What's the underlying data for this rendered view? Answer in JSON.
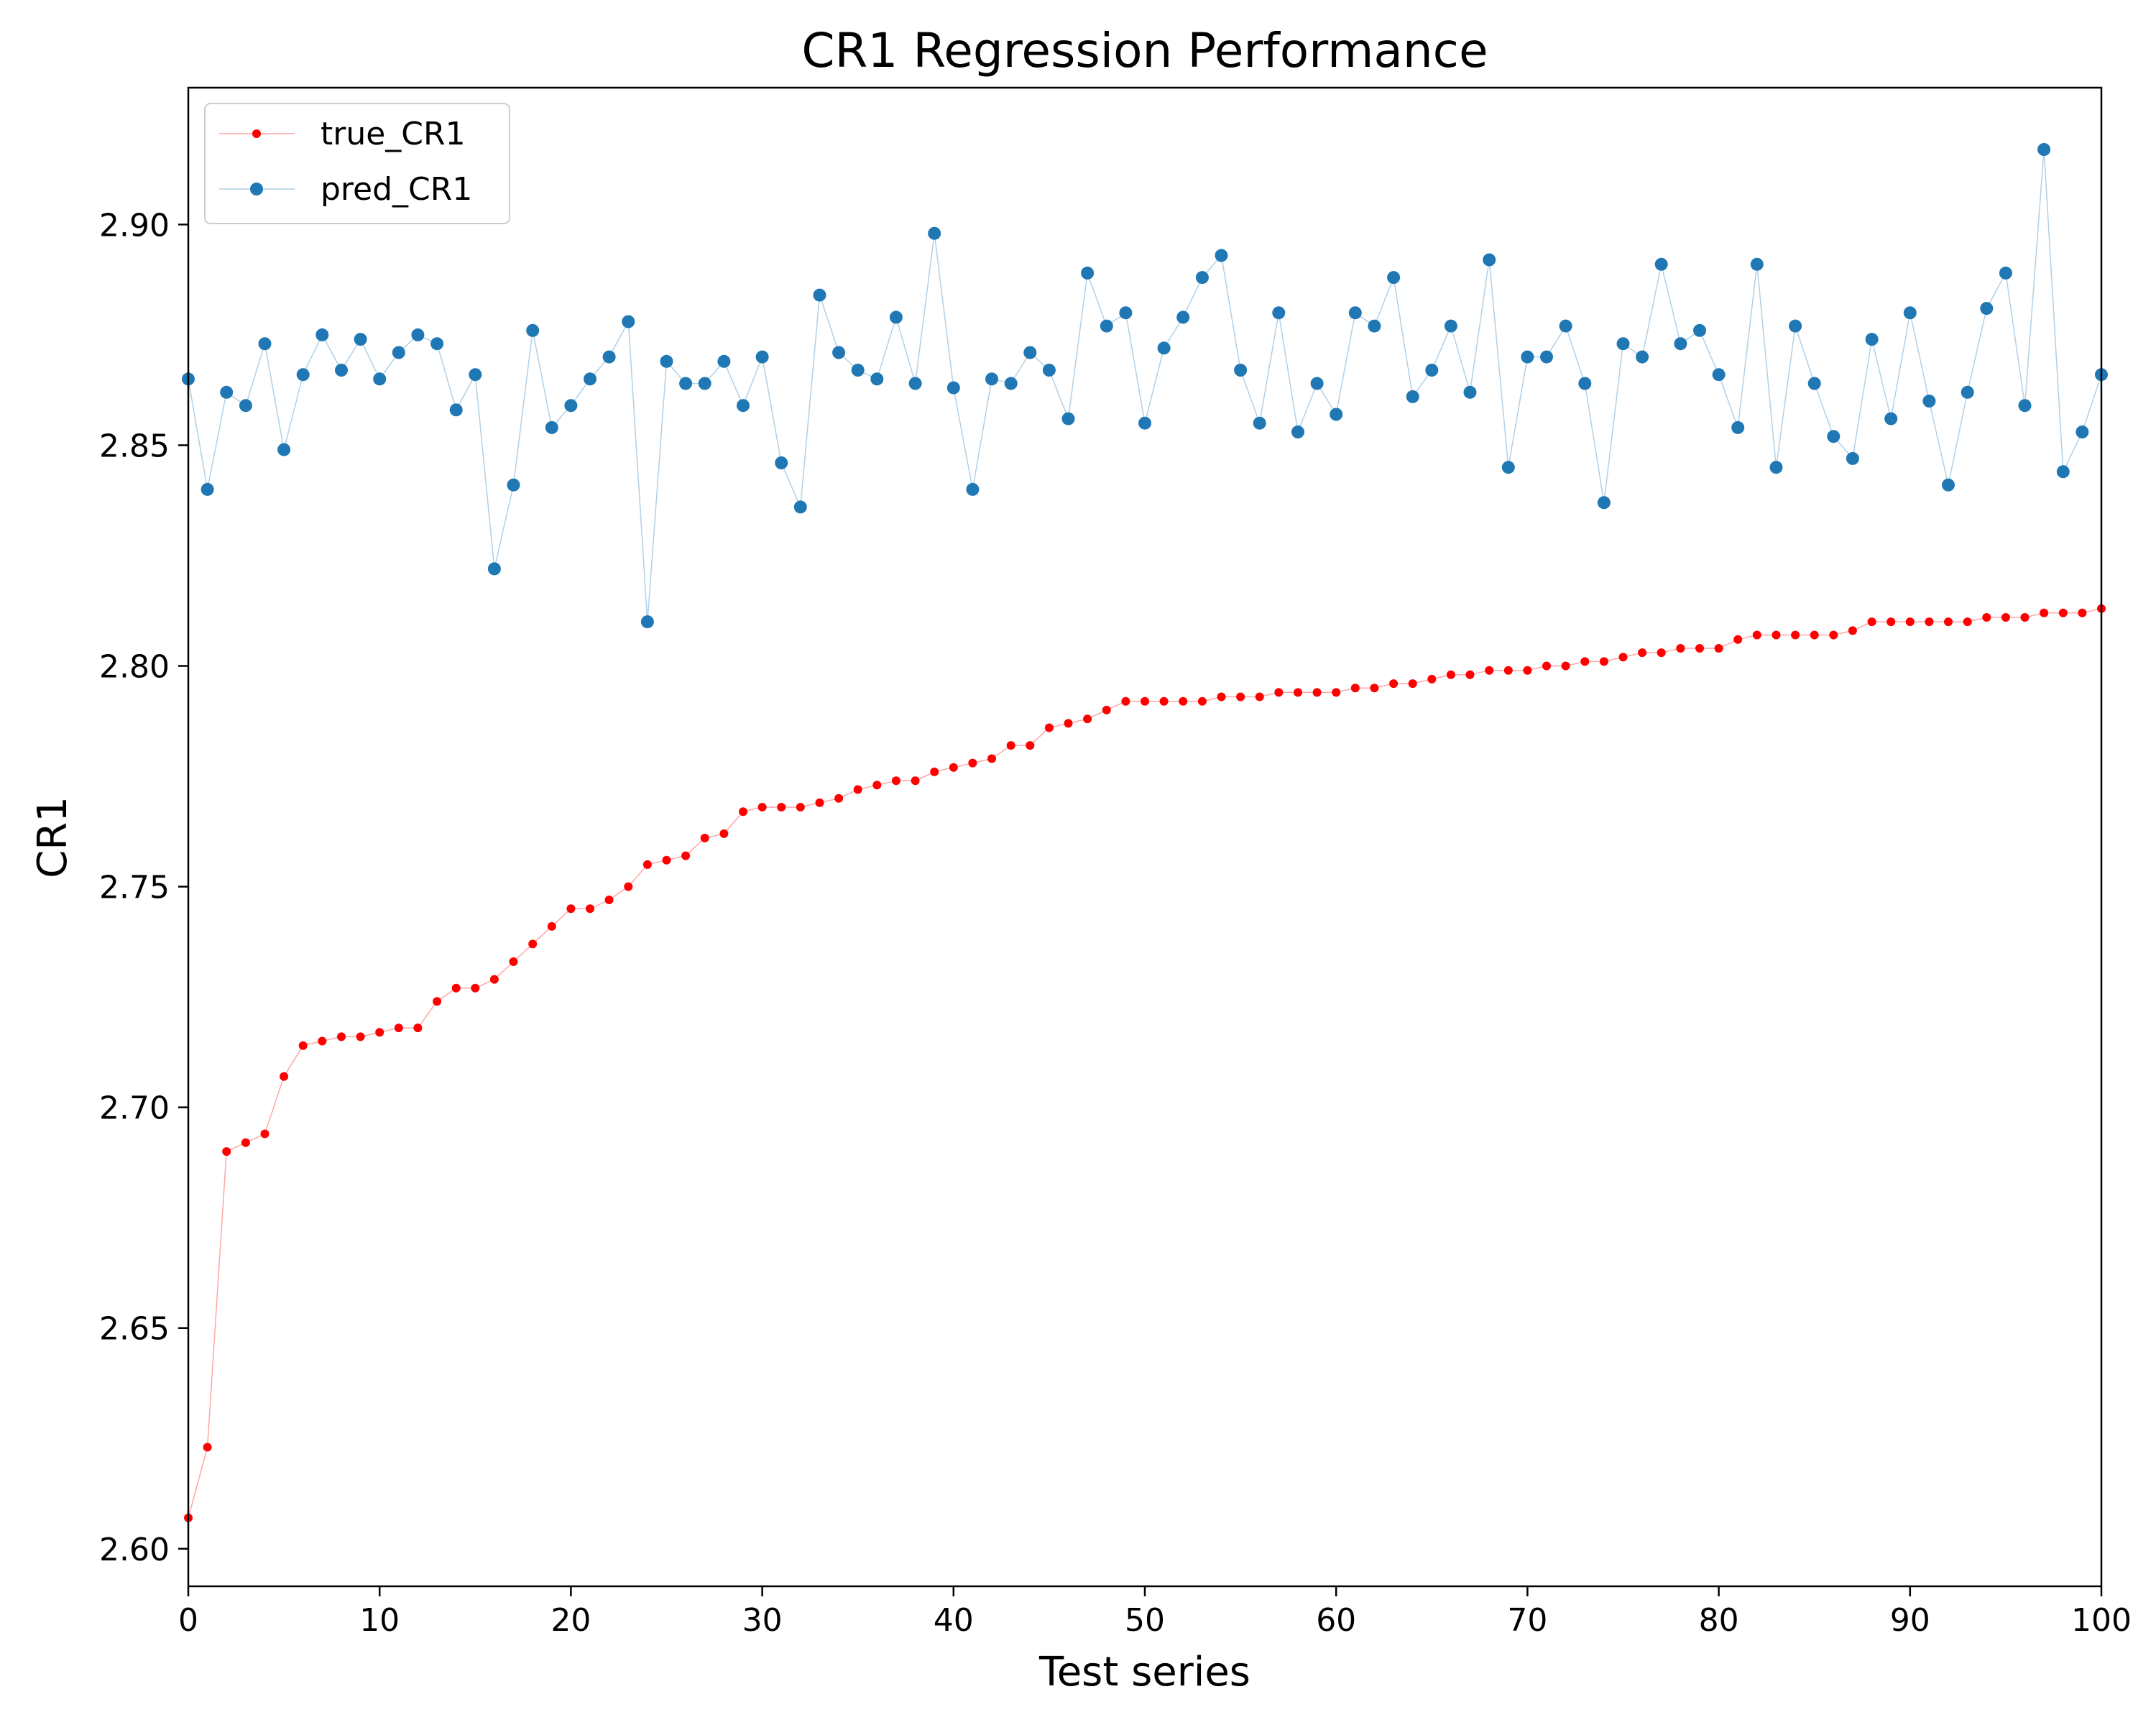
{
  "chart_data": {
    "type": "line",
    "title": "CR1 Regression Performance",
    "xlabel": "Test series",
    "ylabel": "CR1",
    "xlim": [
      0,
      100
    ],
    "ylim": [
      2.5915,
      2.931
    ],
    "xticks": [
      0,
      10,
      20,
      30,
      40,
      50,
      60,
      70,
      80,
      90,
      100
    ],
    "xtick_labels": [
      "0",
      "10",
      "20",
      "30",
      "40",
      "50",
      "60",
      "70",
      "80",
      "90",
      "100"
    ],
    "yticks": [
      2.6,
      2.65,
      2.7,
      2.75,
      2.8,
      2.85,
      2.9
    ],
    "ytick_labels": [
      "2.60",
      "2.65",
      "2.70",
      "2.75",
      "2.80",
      "2.85",
      "2.90"
    ],
    "grid": false,
    "legend_position": "top-left",
    "series": [
      {
        "name": "true_CR1",
        "color": "#ff0000",
        "marker": "dot-small",
        "values": [
          2.607,
          2.623,
          2.69,
          2.692,
          2.694,
          2.707,
          2.714,
          2.715,
          2.716,
          2.716,
          2.717,
          2.718,
          2.718,
          2.724,
          2.727,
          2.727,
          2.729,
          2.733,
          2.737,
          2.741,
          2.745,
          2.745,
          2.747,
          2.75,
          2.755,
          2.756,
          2.757,
          2.761,
          2.762,
          2.767,
          2.768,
          2.768,
          2.768,
          2.769,
          2.77,
          2.772,
          2.773,
          2.774,
          2.774,
          2.776,
          2.777,
          2.778,
          2.779,
          2.782,
          2.782,
          2.786,
          2.787,
          2.788,
          2.79,
          2.792,
          2.792,
          2.792,
          2.792,
          2.792,
          2.793,
          2.793,
          2.793,
          2.794,
          2.794,
          2.794,
          2.794,
          2.795,
          2.795,
          2.796,
          2.796,
          2.797,
          2.798,
          2.798,
          2.799,
          2.799,
          2.799,
          2.8,
          2.8,
          2.801,
          2.801,
          2.802,
          2.803,
          2.803,
          2.804,
          2.804,
          2.804,
          2.806,
          2.807,
          2.807,
          2.807,
          2.807,
          2.807,
          2.808,
          2.81,
          2.81,
          2.81,
          2.81,
          2.81,
          2.81,
          2.811,
          2.811,
          2.811,
          2.812,
          2.812,
          2.812,
          2.813
        ]
      },
      {
        "name": "pred_CR1",
        "color": "#1f77b4",
        "marker": "dot",
        "values": [
          2.865,
          2.84,
          2.862,
          2.859,
          2.873,
          2.849,
          2.866,
          2.875,
          2.867,
          2.874,
          2.865,
          2.871,
          2.875,
          2.873,
          2.858,
          2.866,
          2.822,
          2.841,
          2.876,
          2.854,
          2.859,
          2.865,
          2.87,
          2.878,
          2.81,
          2.869,
          2.864,
          2.864,
          2.869,
          2.859,
          2.87,
          2.846,
          2.836,
          2.884,
          2.871,
          2.867,
          2.865,
          2.879,
          2.864,
          2.898,
          2.863,
          2.84,
          2.865,
          2.864,
          2.871,
          2.867,
          2.856,
          2.889,
          2.877,
          2.88,
          2.855,
          2.872,
          2.879,
          2.888,
          2.893,
          2.867,
          2.855,
          2.88,
          2.853,
          2.864,
          2.857,
          2.88,
          2.877,
          2.888,
          2.861,
          2.867,
          2.877,
          2.862,
          2.892,
          2.845,
          2.87,
          2.87,
          2.877,
          2.864,
          2.837,
          2.873,
          2.87,
          2.891,
          2.873,
          2.876,
          2.866,
          2.854,
          2.891,
          2.845,
          2.877,
          2.864,
          2.852,
          2.847,
          2.874,
          2.856,
          2.88,
          2.86,
          2.841,
          2.862,
          2.881,
          2.889,
          2.859,
          2.917,
          2.844,
          2.853,
          2.866
        ]
      }
    ]
  }
}
